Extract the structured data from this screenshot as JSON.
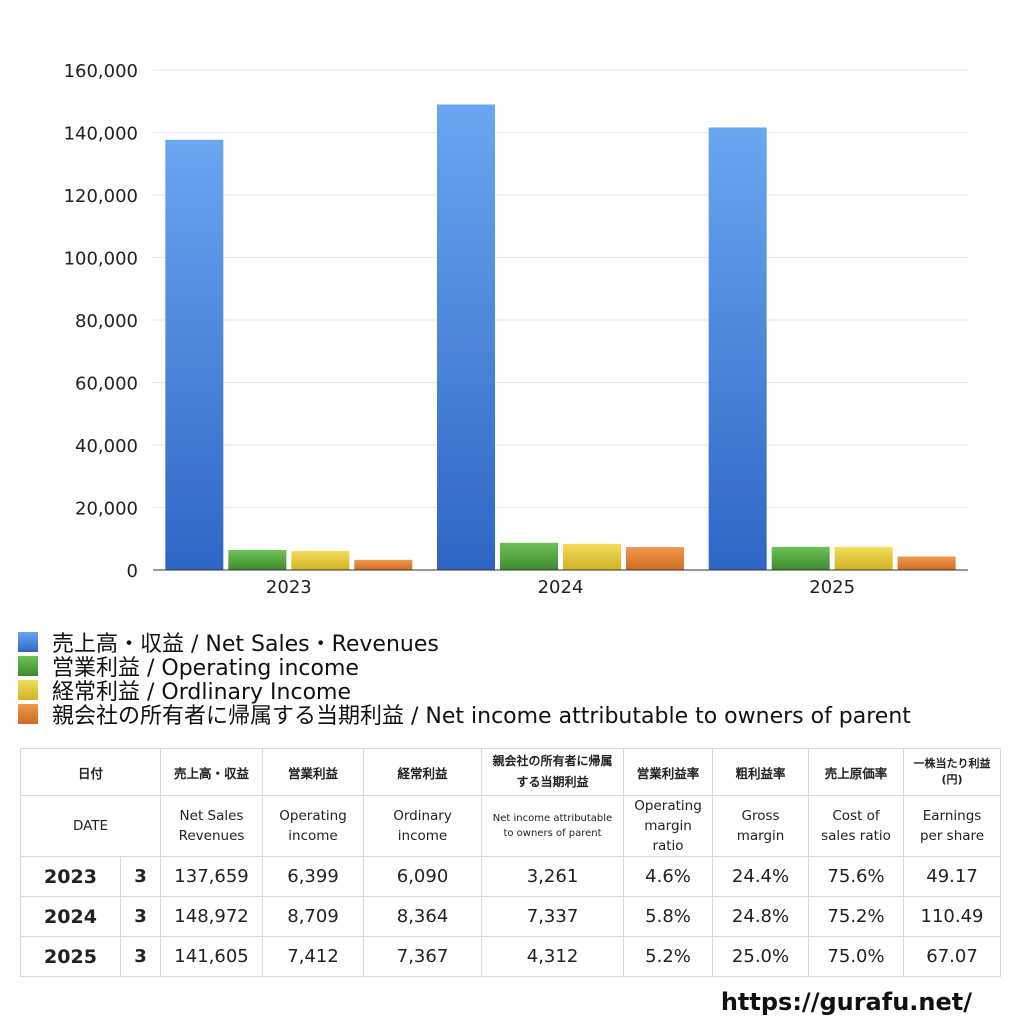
{
  "chart_data": {
    "type": "bar",
    "categories": [
      "2023",
      "2024",
      "2025"
    ],
    "ylim": [
      0,
      160000
    ],
    "yticks": [
      0,
      20000,
      40000,
      60000,
      80000,
      100000,
      120000,
      140000,
      160000
    ],
    "ytick_labels": [
      "0",
      "20,000",
      "40,000",
      "60,000",
      "80,000",
      "100,000",
      "120,000",
      "140,000",
      "160,000"
    ],
    "grid": true,
    "legend_position": "bottom-left",
    "series": [
      {
        "name": "売上高・収益 / Net Sales・Revenues",
        "values": [
          137659,
          148972,
          141605
        ],
        "color": "#3a7ad8"
      },
      {
        "name": "営業利益 / Operating income",
        "values": [
          6399,
          8709,
          7412
        ],
        "color": "#4f9e3c"
      },
      {
        "name": "経常利益 / Ordlinary Income",
        "values": [
          6090,
          8364,
          7367
        ],
        "color": "#e1c530"
      },
      {
        "name": "親会社の所有者に帰属する当期利益 / Net income attributable to owners of parent",
        "values": [
          3261,
          7337,
          4312
        ],
        "color": "#df7a2e"
      }
    ]
  },
  "table": {
    "header_jp": [
      "日付",
      "売上高・収益",
      "営業利益",
      "経常利益",
      "親会社の所有者に帰属する当期利益",
      "営業利益率",
      "粗利益率",
      "売上原価率",
      "一株当たり利益(円)"
    ],
    "header_en": [
      "DATE",
      "Net Sales Revenues",
      "Operating income",
      "Ordinary income",
      "Net income attributable to owners of parent",
      "Operating margin ratio",
      "Gross margin",
      "Cost of sales ratio",
      "Earnings per share"
    ],
    "rows": [
      {
        "year": "2023",
        "month": "3",
        "values": [
          "137,659",
          "6,399",
          "6,090",
          "3,261",
          "4.6%",
          "24.4%",
          "75.6%",
          "49.17"
        ]
      },
      {
        "year": "2024",
        "month": "3",
        "values": [
          "148,972",
          "8,709",
          "8,364",
          "7,337",
          "5.8%",
          "24.8%",
          "75.2%",
          "110.49"
        ]
      },
      {
        "year": "2025",
        "month": "3",
        "values": [
          "141,605",
          "7,412",
          "7,367",
          "4,312",
          "5.2%",
          "25.0%",
          "75.0%",
          "67.07"
        ]
      }
    ]
  },
  "source": "https://gurafu.net/"
}
